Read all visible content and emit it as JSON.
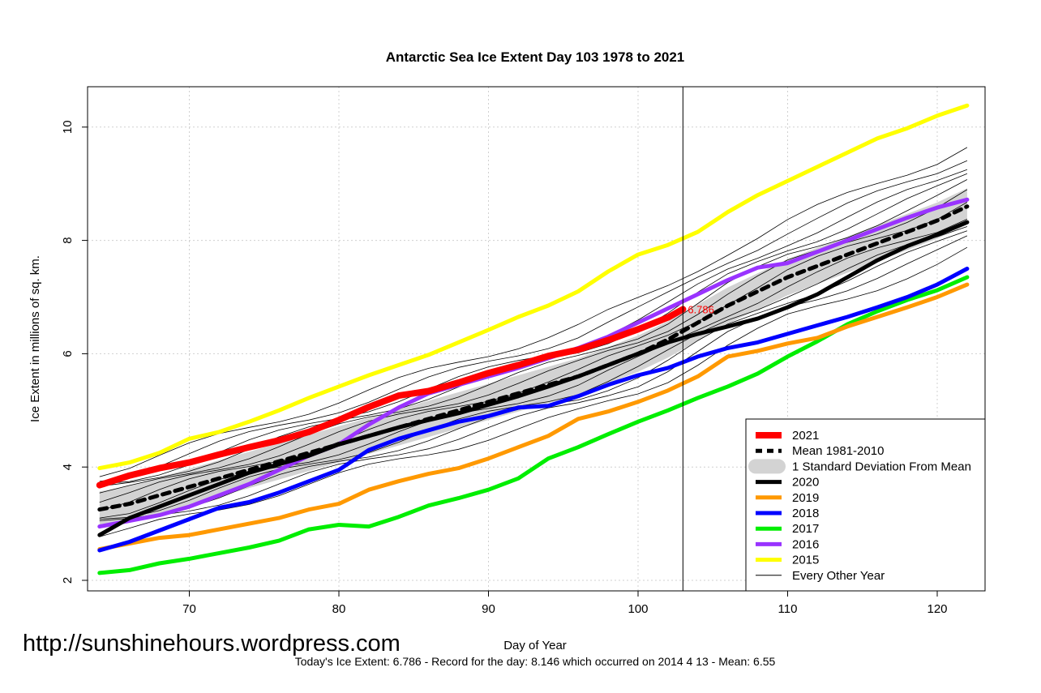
{
  "chart_data": {
    "type": "line",
    "title": "Antarctic Sea Ice Extent Day 103 1978 to 2021",
    "xlabel": "Day of Year",
    "ylabel": "Ice Extent in millions of sq. km.",
    "xlim": [
      64,
      122
    ],
    "ylim": [
      2,
      10.4
    ],
    "x_ticks": [
      70,
      80,
      90,
      100,
      110,
      120
    ],
    "y_ticks": [
      2,
      4,
      6,
      8,
      10
    ],
    "grid": true,
    "current_day": 103,
    "today_value": 6.786,
    "today_label": "6.786",
    "legend_position": "bottom-right",
    "watermark": "http://sunshinehours.wordpress.com",
    "footer": "Today's Ice Extent: 6.786  - Record for the day: 8.146 which occurred on 2014 4 13  - Mean: 6.55",
    "series": [
      {
        "name": "2021",
        "color": "#ff0000",
        "width": 8,
        "x": [
          64,
          66,
          68,
          70,
          72,
          74,
          76,
          78,
          80,
          82,
          84,
          86,
          88,
          90,
          92,
          94,
          96,
          98,
          100,
          102,
          103
        ],
        "values": [
          3.68,
          3.85,
          3.98,
          4.08,
          4.22,
          4.35,
          4.47,
          4.62,
          4.83,
          5.06,
          5.26,
          5.34,
          5.49,
          5.66,
          5.8,
          5.96,
          6.07,
          6.24,
          6.43,
          6.64,
          6.786
        ]
      },
      {
        "name": "Mean 1981-2010",
        "color": "#000000",
        "width": 5,
        "dashed": true,
        "x": [
          64,
          66,
          68,
          70,
          72,
          74,
          76,
          78,
          80,
          82,
          84,
          86,
          88,
          90,
          92,
          94,
          96,
          98,
          100,
          102,
          104,
          106,
          108,
          110,
          112,
          114,
          116,
          118,
          120,
          122
        ],
        "values": [
          3.25,
          3.35,
          3.5,
          3.65,
          3.8,
          3.95,
          4.1,
          4.25,
          4.4,
          4.55,
          4.7,
          4.85,
          5.0,
          5.15,
          5.3,
          5.45,
          5.6,
          5.8,
          6.0,
          6.25,
          6.55,
          6.85,
          7.1,
          7.35,
          7.55,
          7.75,
          7.95,
          8.15,
          8.35,
          8.6
        ]
      },
      {
        "name": "2020",
        "color": "#000000",
        "width": 5,
        "x": [
          64,
          66,
          68,
          70,
          72,
          74,
          76,
          78,
          80,
          82,
          84,
          86,
          88,
          90,
          92,
          94,
          96,
          98,
          100,
          102,
          104,
          106,
          108,
          110,
          112,
          114,
          116,
          118,
          120,
          122
        ],
        "values": [
          2.8,
          3.1,
          3.3,
          3.5,
          3.7,
          3.9,
          4.05,
          4.2,
          4.4,
          4.55,
          4.7,
          4.83,
          4.95,
          5.1,
          5.25,
          5.42,
          5.6,
          5.8,
          6.0,
          6.2,
          6.35,
          6.48,
          6.62,
          6.82,
          7.05,
          7.35,
          7.65,
          7.9,
          8.1,
          8.32
        ]
      },
      {
        "name": "2019",
        "color": "#ff9900",
        "width": 5,
        "x": [
          64,
          66,
          68,
          70,
          72,
          74,
          76,
          78,
          80,
          82,
          84,
          86,
          88,
          90,
          92,
          94,
          96,
          98,
          100,
          102,
          104,
          106,
          108,
          110,
          112,
          114,
          116,
          118,
          120,
          122
        ],
        "values": [
          2.55,
          2.65,
          2.75,
          2.8,
          2.9,
          3.0,
          3.1,
          3.25,
          3.35,
          3.6,
          3.75,
          3.88,
          3.98,
          4.15,
          4.35,
          4.55,
          4.85,
          4.98,
          5.15,
          5.35,
          5.6,
          5.95,
          6.05,
          6.18,
          6.28,
          6.48,
          6.65,
          6.82,
          7.0,
          7.22
        ]
      },
      {
        "name": "2018",
        "color": "#0000ff",
        "width": 5,
        "x": [
          64,
          66,
          68,
          70,
          72,
          74,
          76,
          78,
          80,
          82,
          84,
          86,
          88,
          90,
          92,
          94,
          96,
          98,
          100,
          102,
          104,
          106,
          108,
          110,
          112,
          114,
          116,
          118,
          120,
          122
        ],
        "values": [
          2.53,
          2.68,
          2.88,
          3.08,
          3.28,
          3.38,
          3.55,
          3.75,
          3.95,
          4.3,
          4.5,
          4.65,
          4.8,
          4.9,
          5.05,
          5.08,
          5.25,
          5.45,
          5.62,
          5.75,
          5.95,
          6.1,
          6.2,
          6.35,
          6.5,
          6.65,
          6.82,
          7.0,
          7.22,
          7.5
        ]
      },
      {
        "name": "2017",
        "color": "#00ee00",
        "width": 5,
        "x": [
          64,
          66,
          68,
          70,
          72,
          74,
          76,
          78,
          80,
          82,
          84,
          86,
          88,
          90,
          92,
          94,
          96,
          98,
          100,
          102,
          104,
          106,
          108,
          110,
          112,
          114,
          116,
          118,
          120,
          122
        ],
        "values": [
          2.13,
          2.18,
          2.3,
          2.38,
          2.48,
          2.58,
          2.7,
          2.9,
          2.98,
          2.95,
          3.12,
          3.32,
          3.45,
          3.6,
          3.8,
          4.15,
          4.35,
          4.58,
          4.8,
          5.0,
          5.22,
          5.42,
          5.65,
          5.95,
          6.22,
          6.52,
          6.75,
          6.95,
          7.12,
          7.35
        ]
      },
      {
        "name": "2016",
        "color": "#9933ff",
        "width": 5,
        "x": [
          64,
          66,
          68,
          70,
          72,
          74,
          76,
          78,
          80,
          82,
          84,
          86,
          88,
          90,
          92,
          94,
          96,
          98,
          100,
          102,
          104,
          106,
          108,
          110,
          112,
          114,
          116,
          118,
          120,
          122
        ],
        "values": [
          2.95,
          3.05,
          3.15,
          3.3,
          3.5,
          3.7,
          3.95,
          4.2,
          4.4,
          4.75,
          5.05,
          5.3,
          5.45,
          5.6,
          5.75,
          5.92,
          6.1,
          6.3,
          6.55,
          6.8,
          7.05,
          7.3,
          7.52,
          7.6,
          7.8,
          8.0,
          8.2,
          8.4,
          8.58,
          8.72
        ]
      },
      {
        "name": "2015",
        "color": "#ffff00",
        "width": 5,
        "x": [
          64,
          66,
          68,
          70,
          72,
          74,
          76,
          78,
          80,
          82,
          84,
          86,
          88,
          90,
          92,
          94,
          96,
          98,
          100,
          102,
          104,
          106,
          108,
          110,
          112,
          114,
          116,
          118,
          120,
          122
        ],
        "values": [
          3.98,
          4.08,
          4.25,
          4.5,
          4.62,
          4.8,
          5.0,
          5.22,
          5.42,
          5.62,
          5.8,
          5.98,
          6.2,
          6.42,
          6.65,
          6.85,
          7.1,
          7.45,
          7.75,
          7.92,
          8.15,
          8.5,
          8.8,
          9.05,
          9.3,
          9.55,
          9.8,
          9.98,
          10.2,
          10.38
        ]
      }
    ],
    "sd_band": {
      "name": "1 Standard Deviation From Mean",
      "color": "#d3d3d3",
      "spread": 0.32
    },
    "every_other_year": {
      "name": "Every Other Year",
      "color": "#000000",
      "offsets": [
        -0.8,
        -0.6,
        -0.45,
        -0.3,
        -0.15,
        0.1,
        0.25,
        0.4,
        0.55,
        0.7,
        0.9,
        1.1
      ]
    },
    "legend": [
      "2021",
      "Mean 1981-2010",
      "1 Standard Deviation From Mean",
      "2020",
      "2019",
      "2018",
      "2017",
      "2016",
      "2015",
      "Every Other Year"
    ]
  }
}
